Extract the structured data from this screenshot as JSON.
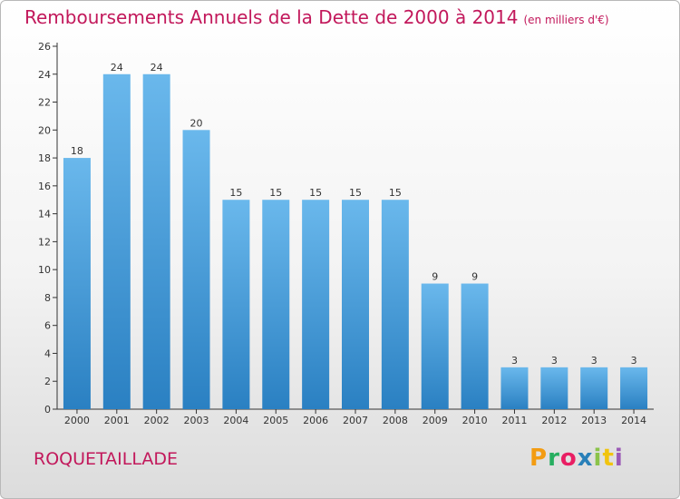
{
  "title": "Remboursements Annuels de la Dette de 2000 à 2014",
  "unit": "(en milliers d'€)",
  "commune": "ROQUETAILLADE",
  "logo": {
    "text": "Proxiti",
    "colors": [
      "#f39c12",
      "#27ae60",
      "#e91e63",
      "#2980b9",
      "#8bc34a",
      "#f1c40f",
      "#9b59b6"
    ]
  },
  "colors": {
    "title": "#c2185b",
    "bar_top": "#6ab8ec",
    "bar_bottom": "#2a80c2",
    "axis": "#333333"
  },
  "chart_data": {
    "type": "bar",
    "categories": [
      "2000",
      "2001",
      "2002",
      "2003",
      "2004",
      "2005",
      "2006",
      "2007",
      "2008",
      "2009",
      "2010",
      "2011",
      "2012",
      "2013",
      "2014"
    ],
    "values": [
      18,
      24,
      24,
      20,
      15,
      15,
      15,
      15,
      15,
      9,
      9,
      3,
      3,
      3,
      3
    ],
    "ylim": [
      0,
      26
    ],
    "yticks": [
      0,
      2,
      4,
      6,
      8,
      10,
      12,
      14,
      16,
      18,
      20,
      22,
      24,
      26
    ],
    "grid": false,
    "data_labels": true
  }
}
